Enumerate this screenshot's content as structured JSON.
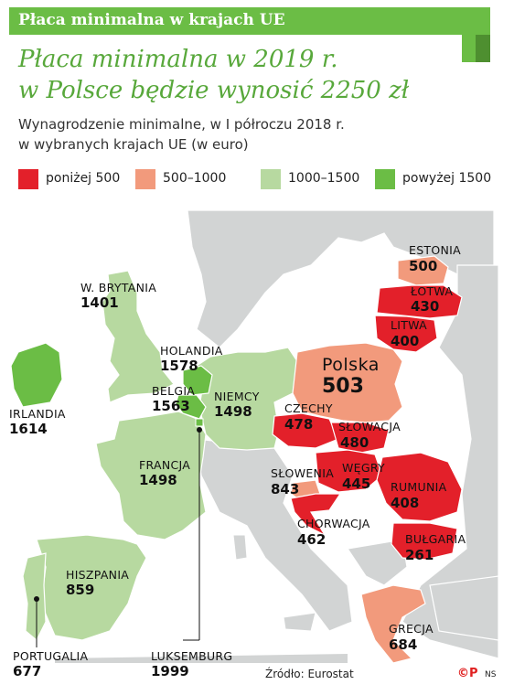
{
  "header": {
    "tag": "Płaca minimalna w krajach UE"
  },
  "headline": {
    "line1": "Płaca minimalna w 2019 r.",
    "line2": "w Polsce będzie wynosić 2250 zł"
  },
  "subtitle": {
    "line1": "Wynagrodzenie minimalne, w I półroczu 2018 r.",
    "line2": "w wybranych krajach UE (w euro)"
  },
  "legend": [
    {
      "label": "poniżej 500",
      "color": "#e3202a"
    },
    {
      "label": "500–1000",
      "color": "#f29a7c"
    },
    {
      "label": "1000–1500",
      "color": "#b7d9a0"
    },
    {
      "label": "powyżej 1500",
      "color": "#6bbd45"
    }
  ],
  "countries": {
    "uk": {
      "name": "W. Brytania",
      "value": "1401"
    },
    "ireland": {
      "name": "Irlandia",
      "value": "1614"
    },
    "netherlands": {
      "name": "Holandia",
      "value": "1578"
    },
    "belgium": {
      "name": "Belgia",
      "value": "1563"
    },
    "germany": {
      "name": "Niemcy",
      "value": "1498"
    },
    "france": {
      "name": "Francja",
      "value": "1498"
    },
    "spain": {
      "name": "Hiszpania",
      "value": "859"
    },
    "portugal": {
      "name": "Portugalia",
      "value": "677"
    },
    "luxembourg": {
      "name": "Luksemburg",
      "value": "1999"
    },
    "poland": {
      "name": "Polska",
      "value": "503"
    },
    "estonia": {
      "name": "Estonia",
      "value": "500"
    },
    "latvia": {
      "name": "Łotwa",
      "value": "430"
    },
    "lithuania": {
      "name": "Litwa",
      "value": "400"
    },
    "czechia": {
      "name": "Czechy",
      "value": "478"
    },
    "slovakia": {
      "name": "Słowacja",
      "value": "480"
    },
    "slovenia": {
      "name": "Słowenia",
      "value": "843"
    },
    "hungary": {
      "name": "Węgry",
      "value": "445"
    },
    "romania": {
      "name": "Rumunia",
      "value": "408"
    },
    "croatia": {
      "name": "Chorwacja",
      "value": "462"
    },
    "bulgaria": {
      "name": "Bułgaria",
      "value": "261"
    },
    "greece": {
      "name": "Grecja",
      "value": "684"
    }
  },
  "colors": {
    "sea": "#ffffff",
    "land_gray": "#d2d4d4",
    "border_white": "#ffffff",
    "dark_red": "#e3202a",
    "salmon": "#f29a7c",
    "light_green": "#b7d9a0",
    "green": "#6bbd45"
  },
  "footer": {
    "source": "Źródło: Eurostat",
    "brand": "©P",
    "initials": "NS"
  }
}
